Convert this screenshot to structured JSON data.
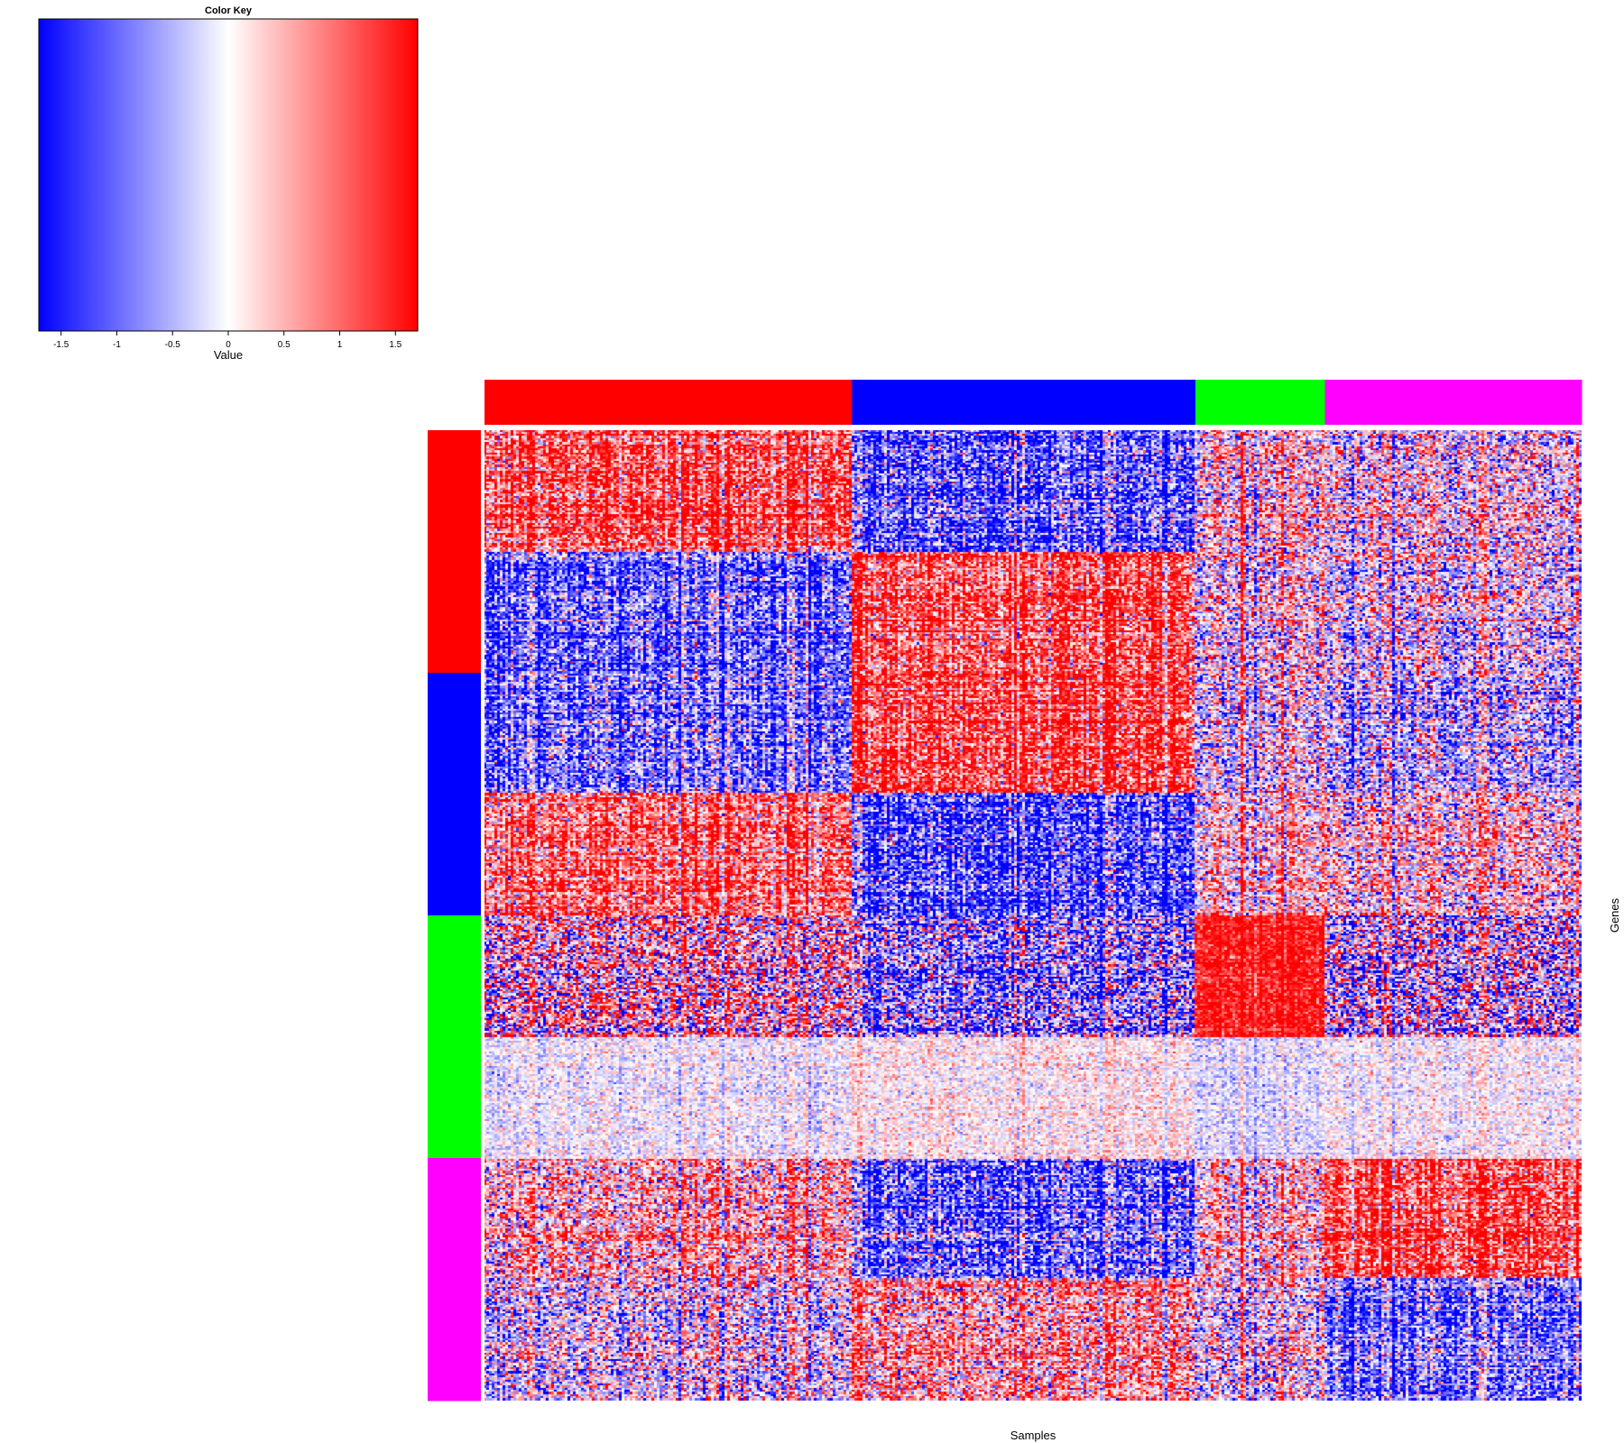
{
  "chart_data": {
    "type": "heatmap",
    "color_key": {
      "title": "Color Key",
      "xlabel": "Value",
      "range": [
        -1.7,
        1.7
      ],
      "ticks": [
        -1.5,
        -1,
        -0.5,
        0,
        0.5,
        1,
        1.5
      ],
      "tick_labels": [
        "-1.5",
        "-1",
        "-0.5",
        "0",
        "0.5",
        "1",
        "1.5"
      ],
      "low_color": "#0000ff",
      "mid_color": "#ffffff",
      "high_color": "#ff0000"
    },
    "xlabel": "Samples",
    "ylabel": "Genes",
    "column_groups": [
      {
        "color": "#ff0000",
        "fraction": 0.335
      },
      {
        "color": "#0000ff",
        "fraction": 0.313
      },
      {
        "color": "#00ff00",
        "fraction": 0.118
      },
      {
        "color": "#ff00ff",
        "fraction": 0.234
      }
    ],
    "row_groups": [
      {
        "color": "#ff0000",
        "fraction": 0.25
      },
      {
        "color": "#0000ff",
        "fraction": 0.25
      },
      {
        "color": "#00ff00",
        "fraction": 0.25
      },
      {
        "color": "#ff00ff",
        "fraction": 0.25
      }
    ],
    "block_patterns": {
      "description": "Mean expression value for each row sub-block (8, two per row group) across the four column groups",
      "row_block_fractions": [
        0.125,
        0.125,
        0.125,
        0.125,
        0.125,
        0.125,
        0.125,
        0.125
      ],
      "means": [
        [
          1.2,
          -1.1,
          0.3,
          0.1
        ],
        [
          -1.1,
          1.1,
          0.1,
          -0.1
        ],
        [
          -0.9,
          1.3,
          0.0,
          -0.4
        ],
        [
          1.0,
          -1.2,
          0.4,
          0.3
        ],
        [
          0.2,
          -0.8,
          1.6,
          -0.2
        ],
        [
          -0.1,
          0.1,
          -0.2,
          0.0
        ],
        [
          0.5,
          -1.0,
          0.4,
          1.3
        ],
        [
          -0.2,
          0.5,
          0.0,
          -0.9
        ]
      ],
      "noise": [
        [
          0.8,
          0.9,
          0.9,
          0.9
        ],
        [
          0.8,
          0.8,
          0.9,
          0.9
        ],
        [
          0.8,
          0.8,
          0.9,
          0.9
        ],
        [
          0.8,
          0.9,
          0.8,
          0.9
        ],
        [
          1.4,
          1.2,
          0.4,
          1.4
        ],
        [
          0.35,
          0.35,
          0.35,
          0.35
        ],
        [
          0.9,
          0.9,
          0.8,
          0.8
        ],
        [
          0.9,
          0.9,
          0.9,
          0.8
        ]
      ]
    }
  }
}
